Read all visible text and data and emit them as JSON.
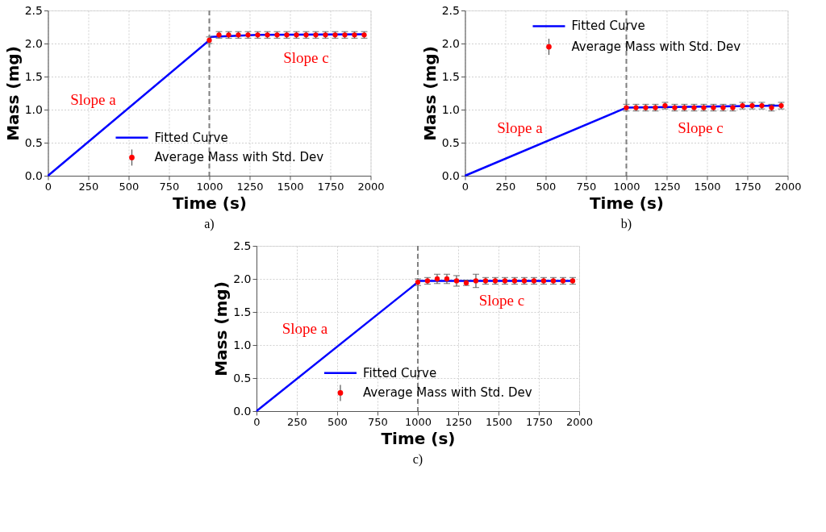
{
  "chart_data": [
    {
      "type": "line",
      "xlabel": "Time (s)",
      "ylabel": "Mass (mg)",
      "xlim": [
        0,
        2000
      ],
      "ylim": [
        0,
        2.5
      ],
      "xticks": [
        0,
        250,
        500,
        750,
        1000,
        1250,
        1500,
        1750,
        2000
      ],
      "yticks": [
        {
          "value": 0,
          "label": "0.0"
        },
        0.5,
        {
          "value": 1,
          "label": "1.0"
        },
        1.5,
        {
          "value": 2,
          "label": "2.0"
        },
        2.5
      ],
      "grid": true,
      "legend": "bottom",
      "series": [
        {
          "name": "Fitted Curve",
          "color": "#0000ff",
          "x": [
            0,
            1000,
            1010,
            1300,
            1960
          ],
          "values": [
            0,
            2.05,
            2.1,
            2.13,
            2.14
          ]
        },
        {
          "name": "Average Mass with Std. Dev",
          "type": "scatter",
          "color": "#ff0000",
          "x": [
            1000,
            1060,
            1120,
            1180,
            1240,
            1300,
            1360,
            1420,
            1480,
            1540,
            1600,
            1660,
            1720,
            1780,
            1840,
            1900,
            1960
          ],
          "values": [
            2.05,
            2.13,
            2.13,
            2.13,
            2.13,
            2.13,
            2.13,
            2.13,
            2.13,
            2.13,
            2.13,
            2.13,
            2.13,
            2.13,
            2.13,
            2.13,
            2.13
          ],
          "errors": [
            0.05,
            0.05,
            0.05,
            0.05,
            0.05,
            0.05,
            0.05,
            0.05,
            0.05,
            0.05,
            0.05,
            0.05,
            0.05,
            0.05,
            0.05,
            0.05,
            0.05
          ]
        }
      ],
      "ref_lines": [
        {
          "axis": "x",
          "value": 1000,
          "color": "#808080",
          "line_style": "dashed"
        }
      ],
      "annotations": [
        "Slope a",
        "Slope c",
        "a)"
      ]
    },
    {
      "type": "line",
      "xlabel": "Time (s)",
      "ylabel": "Mass (mg)",
      "xlim": [
        0,
        2000
      ],
      "ylim": [
        0,
        2.5
      ],
      "xticks": [
        0,
        250,
        500,
        750,
        1000,
        1250,
        1500,
        1750,
        2000
      ],
      "yticks": [
        {
          "value": 0,
          "label": "0.0"
        },
        0.5,
        {
          "value": 1,
          "label": "1.0"
        },
        1.5,
        {
          "value": 2,
          "label": "2.0"
        },
        2.5
      ],
      "grid": true,
      "legend": "top",
      "series": [
        {
          "name": "Fitted Curve",
          "color": "#0000ff",
          "x": [
            0,
            1000,
            1960
          ],
          "values": [
            0,
            1.03,
            1.06
          ]
        },
        {
          "name": "Average Mass with Std. Dev",
          "type": "scatter",
          "color": "#ff0000",
          "x": [
            1000,
            1060,
            1120,
            1180,
            1240,
            1300,
            1360,
            1420,
            1480,
            1540,
            1600,
            1660,
            1720,
            1780,
            1840,
            1900,
            1960
          ],
          "values": [
            1.03,
            1.03,
            1.03,
            1.03,
            1.06,
            1.03,
            1.03,
            1.03,
            1.03,
            1.03,
            1.03,
            1.03,
            1.06,
            1.06,
            1.06,
            1.03,
            1.06
          ],
          "errors": [
            0.05,
            0.05,
            0.05,
            0.05,
            0.05,
            0.05,
            0.05,
            0.05,
            0.05,
            0.05,
            0.05,
            0.05,
            0.05,
            0.05,
            0.05,
            0.05,
            0.05
          ]
        }
      ],
      "ref_lines": [
        {
          "axis": "x",
          "value": 1000,
          "color": "#808080",
          "line_style": "dashed"
        }
      ],
      "annotations": [
        "Slope a",
        "Slope c",
        "b)"
      ]
    },
    {
      "type": "line",
      "xlabel": "Time (s)",
      "ylabel": "Mass (mg)",
      "xlim": [
        0,
        2000
      ],
      "ylim": [
        0,
        2.5
      ],
      "xticks": [
        0,
        250,
        500,
        750,
        1000,
        1250,
        1500,
        1750,
        2000
      ],
      "yticks": [
        {
          "value": 0,
          "label": "0.0"
        },
        0.5,
        {
          "value": 1,
          "label": "1.0"
        },
        1.5,
        {
          "value": 2,
          "label": "2.0"
        },
        2.5
      ],
      "grid": true,
      "legend": "bottom",
      "series": [
        {
          "name": "Fitted Curve",
          "color": "#0000ff",
          "x": [
            0,
            1000,
            1010,
            1960
          ],
          "values": [
            0,
            1.95,
            1.97,
            1.97
          ]
        },
        {
          "name": "Average Mass with Std. Dev",
          "type": "scatter",
          "color": "#ff0000",
          "x": [
            1000,
            1060,
            1120,
            1180,
            1240,
            1300,
            1360,
            1420,
            1480,
            1540,
            1600,
            1660,
            1720,
            1780,
            1840,
            1900,
            1960
          ],
          "values": [
            1.95,
            1.97,
            2.0,
            2.0,
            1.97,
            1.94,
            1.97,
            1.97,
            1.97,
            1.97,
            1.97,
            1.97,
            1.97,
            1.97,
            1.97,
            1.97,
            1.97
          ],
          "errors": [
            0.05,
            0.05,
            0.07,
            0.07,
            0.08,
            0.04,
            0.1,
            0.05,
            0.05,
            0.05,
            0.05,
            0.05,
            0.05,
            0.05,
            0.05,
            0.05,
            0.05
          ]
        }
      ],
      "ref_lines": [
        {
          "axis": "x",
          "value": 1000,
          "color": "#808080",
          "line_style": "dashed"
        }
      ],
      "annotations": [
        "Slope a",
        "Slope c",
        "c)"
      ]
    }
  ]
}
